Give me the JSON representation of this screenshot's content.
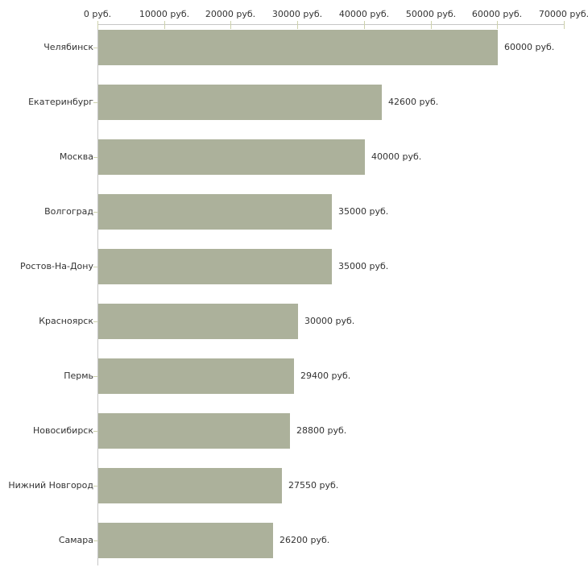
{
  "chart_data": {
    "type": "bar",
    "orientation": "horizontal",
    "title": "",
    "xlabel": "",
    "ylabel": "",
    "unit_suffix": " руб.",
    "categories": [
      "Челябинск",
      "Екатеринбург",
      "Москва",
      "Волгоград",
      "Ростов-На-Дону",
      "Красноярск",
      "Пермь",
      "Новосибирск",
      "Нижний Новгород",
      "Самара"
    ],
    "values": [
      60000,
      42600,
      40000,
      35000,
      35000,
      30000,
      29400,
      28800,
      27550,
      26200
    ],
    "value_labels": [
      "60000 руб.",
      "42600 руб.",
      "40000 руб.",
      "35000 руб.",
      "35000 руб.",
      "30000 руб.",
      "29400 руб.",
      "28800 руб.",
      "27550 руб.",
      "26200 руб."
    ],
    "x_axis": {
      "position": "top",
      "min": 0,
      "max": 70000,
      "tick_step": 10000,
      "tick_values": [
        0,
        10000,
        20000,
        30000,
        40000,
        50000,
        60000,
        70000
      ],
      "tick_labels": [
        "0 руб.",
        "10000 руб.",
        "20000 руб.",
        "30000 руб.",
        "40000 руб.",
        "50000 руб.",
        "60000 руб.",
        "70000 руб."
      ]
    },
    "grid": false,
    "legend": false,
    "colors": {
      "bar": "#acb19b",
      "axis_line": "#c6c6c6",
      "tick": "#cdd1ab",
      "text": "#333333",
      "background": "#ffffff"
    }
  }
}
